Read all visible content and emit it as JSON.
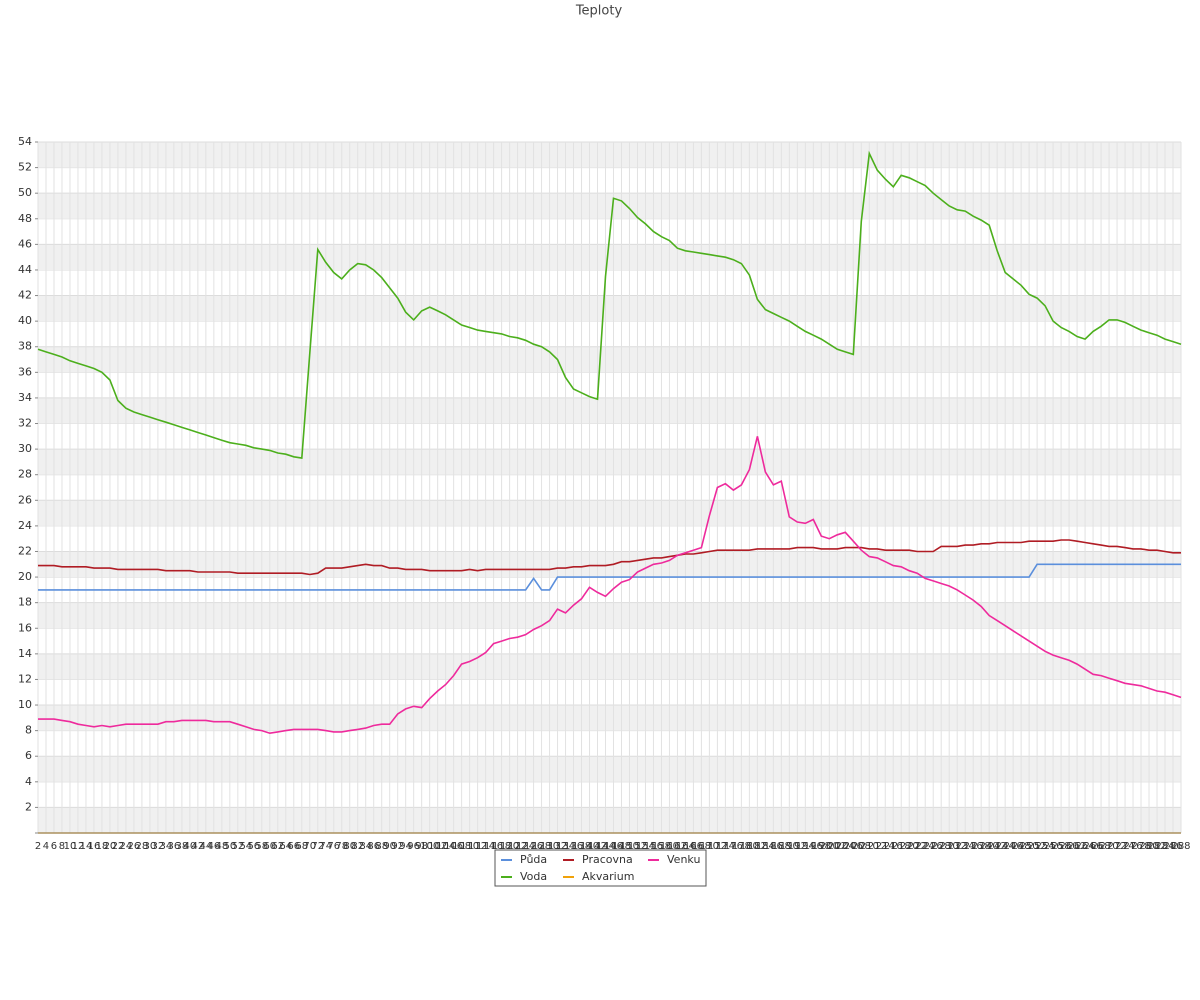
{
  "chart_data": {
    "type": "line",
    "title": "Teploty",
    "x": [
      2,
      4,
      6,
      8,
      10,
      12,
      14,
      16,
      18,
      20,
      22,
      24,
      26,
      28,
      30,
      32,
      34,
      36,
      38,
      40,
      42,
      44,
      46,
      48,
      50,
      52,
      54,
      56,
      58,
      60,
      62,
      64,
      66,
      68,
      70,
      72,
      74,
      76,
      78,
      80,
      82,
      84,
      86,
      88,
      90,
      92,
      94,
      96,
      98,
      100,
      102,
      104,
      106,
      108,
      110,
      112,
      114,
      116,
      118,
      120,
      122,
      124,
      126,
      128,
      130,
      132,
      134,
      136,
      138,
      140,
      142,
      144,
      146,
      148,
      150,
      152,
      154,
      156,
      158,
      160,
      162,
      164,
      166,
      168,
      170,
      172,
      174,
      176,
      178,
      180,
      182,
      184,
      186,
      188,
      190,
      192,
      194,
      196,
      198,
      200,
      202,
      204,
      206,
      208,
      210,
      212,
      214,
      216,
      218,
      220,
      222,
      224,
      226,
      228,
      230,
      232,
      234,
      236,
      238,
      240,
      242,
      244,
      246,
      248,
      250,
      252,
      254,
      256,
      258,
      260,
      262,
      264,
      266,
      268,
      270,
      272,
      274,
      276,
      278,
      280,
      282,
      284,
      286,
      288
    ],
    "ylim": [
      0,
      54
    ],
    "yticks": [
      2,
      4,
      6,
      8,
      10,
      12,
      14,
      16,
      18,
      20,
      22,
      24,
      26,
      28,
      30,
      32,
      34,
      36,
      38,
      40,
      42,
      44,
      46,
      48,
      50,
      52,
      54
    ],
    "grid": true,
    "legend": "bottom",
    "series": [
      {
        "name": "Půda",
        "color": "#5b8fdc",
        "values": [
          19,
          19,
          19,
          19,
          19,
          19,
          19,
          19,
          19,
          19,
          19,
          19,
          19,
          19,
          19,
          19,
          19,
          19,
          19,
          19,
          19,
          19,
          19,
          19,
          19,
          19,
          19,
          19,
          19,
          19,
          19,
          19,
          19,
          19,
          19,
          19,
          19,
          19,
          19,
          19,
          19,
          19,
          19,
          19,
          19,
          19,
          19,
          19,
          19,
          19,
          19,
          19,
          19,
          19,
          19,
          19,
          19,
          19,
          19,
          19,
          19,
          19,
          19.9,
          19,
          19,
          20,
          20,
          20,
          20,
          20,
          20,
          20,
          20,
          20,
          20,
          20,
          20,
          20,
          20,
          20,
          20,
          20,
          20,
          20,
          20,
          20,
          20,
          20,
          20,
          20,
          20,
          20,
          20,
          20,
          20,
          20,
          20,
          20,
          20,
          20,
          20,
          20,
          20,
          20,
          20,
          20,
          20,
          20,
          20,
          20,
          20,
          20,
          20,
          20,
          20,
          20,
          20,
          20,
          20,
          20,
          20,
          20,
          20,
          20,
          20,
          21,
          21,
          21,
          21,
          21,
          21,
          21,
          21,
          21,
          21,
          21,
          21,
          21,
          21,
          21,
          21,
          21,
          21,
          21
        ]
      },
      {
        "name": "Pracovna",
        "color": "#b01c24",
        "values": [
          20.9,
          20.9,
          20.9,
          20.8,
          20.8,
          20.8,
          20.8,
          20.7,
          20.7,
          20.7,
          20.6,
          20.6,
          20.6,
          20.6,
          20.6,
          20.6,
          20.5,
          20.5,
          20.5,
          20.5,
          20.4,
          20.4,
          20.4,
          20.4,
          20.4,
          20.3,
          20.3,
          20.3,
          20.3,
          20.3,
          20.3,
          20.3,
          20.3,
          20.3,
          20.2,
          20.3,
          20.7,
          20.7,
          20.7,
          20.8,
          20.9,
          21.0,
          20.9,
          20.9,
          20.7,
          20.7,
          20.6,
          20.6,
          20.6,
          20.5,
          20.5,
          20.5,
          20.5,
          20.5,
          20.6,
          20.5,
          20.6,
          20.6,
          20.6,
          20.6,
          20.6,
          20.6,
          20.6,
          20.6,
          20.6,
          20.7,
          20.7,
          20.8,
          20.8,
          20.9,
          20.9,
          20.9,
          21.0,
          21.2,
          21.2,
          21.3,
          21.4,
          21.5,
          21.5,
          21.6,
          21.7,
          21.8,
          21.8,
          21.9,
          22.0,
          22.1,
          22.1,
          22.1,
          22.1,
          22.1,
          22.2,
          22.2,
          22.2,
          22.2,
          22.2,
          22.3,
          22.3,
          22.3,
          22.2,
          22.2,
          22.2,
          22.3,
          22.3,
          22.3,
          22.2,
          22.2,
          22.1,
          22.1,
          22.1,
          22.1,
          22.0,
          22.0,
          22.0,
          22.4,
          22.4,
          22.4,
          22.5,
          22.5,
          22.6,
          22.6,
          22.7,
          22.7,
          22.7,
          22.7,
          22.8,
          22.8,
          22.8,
          22.8,
          22.9,
          22.9,
          22.8,
          22.7,
          22.6,
          22.5,
          22.4,
          22.4,
          22.3,
          22.2,
          22.2,
          22.1,
          22.1,
          22.0,
          21.9,
          21.9
        ]
      },
      {
        "name": "Venku",
        "color": "#ee2a9c",
        "values": [
          8.9,
          8.9,
          8.9,
          8.8,
          8.7,
          8.5,
          8.4,
          8.3,
          8.4,
          8.3,
          8.4,
          8.5,
          8.5,
          8.5,
          8.5,
          8.5,
          8.7,
          8.7,
          8.8,
          8.8,
          8.8,
          8.8,
          8.7,
          8.7,
          8.7,
          8.5,
          8.3,
          8.1,
          8.0,
          7.8,
          7.9,
          8.0,
          8.1,
          8.1,
          8.1,
          8.1,
          8.0,
          7.9,
          7.9,
          8.0,
          8.1,
          8.2,
          8.4,
          8.5,
          8.5,
          9.3,
          9.7,
          9.9,
          9.8,
          10.5,
          11.1,
          11.6,
          12.3,
          13.2,
          13.4,
          13.7,
          14.1,
          14.8,
          15.0,
          15.2,
          15.3,
          15.5,
          15.9,
          16.2,
          16.6,
          17.5,
          17.2,
          17.8,
          18.3,
          19.2,
          18.8,
          18.5,
          19.1,
          19.6,
          19.8,
          20.4,
          20.7,
          21.0,
          21.1,
          21.3,
          21.7,
          21.9,
          22.1,
          22.3,
          24.8,
          27.0,
          27.3,
          26.8,
          27.2,
          28.4,
          31.0,
          28.2,
          27.2,
          27.5,
          24.7,
          24.3,
          24.2,
          24.5,
          23.2,
          23.0,
          23.3,
          23.5,
          22.8,
          22.1,
          21.6,
          21.5,
          21.2,
          20.9,
          20.8,
          20.5,
          20.3,
          19.9,
          19.7,
          19.5,
          19.3,
          19.0,
          18.6,
          18.2,
          17.7,
          17.0,
          16.6,
          16.2,
          15.8,
          15.4,
          15.0,
          14.6,
          14.2,
          13.9,
          13.7,
          13.5,
          13.2,
          12.8,
          12.4,
          12.3,
          12.1,
          11.9,
          11.7,
          11.6,
          11.5,
          11.3,
          11.1,
          11.0,
          10.8,
          10.6
        ]
      },
      {
        "name": "Voda",
        "color": "#4caf1c",
        "values": [
          37.8,
          37.6,
          37.4,
          37.2,
          36.9,
          36.7,
          36.5,
          36.3,
          36.0,
          35.4,
          33.8,
          33.2,
          32.9,
          32.7,
          32.5,
          32.3,
          32.1,
          31.9,
          31.7,
          31.5,
          31.3,
          31.1,
          30.9,
          30.7,
          30.5,
          30.4,
          30.3,
          30.1,
          30.0,
          29.9,
          29.7,
          29.6,
          29.4,
          29.3,
          37.5,
          45.6,
          44.6,
          43.8,
          43.3,
          44.0,
          44.5,
          44.4,
          44.0,
          43.4,
          42.6,
          41.8,
          40.7,
          40.1,
          40.8,
          41.1,
          40.8,
          40.5,
          40.1,
          39.7,
          39.5,
          39.3,
          39.2,
          39.1,
          39.0,
          38.8,
          38.7,
          38.5,
          38.2,
          38.0,
          37.6,
          37.0,
          35.6,
          34.7,
          34.4,
          34.1,
          33.9,
          43.5,
          49.6,
          49.4,
          48.8,
          48.1,
          47.6,
          47.0,
          46.6,
          46.3,
          45.7,
          45.5,
          45.4,
          45.3,
          45.2,
          45.1,
          45.0,
          44.8,
          44.5,
          43.6,
          41.7,
          40.9,
          40.6,
          40.3,
          40.0,
          39.6,
          39.2,
          38.9,
          38.6,
          38.2,
          37.8,
          37.6,
          37.4,
          47.8,
          53.1,
          51.8,
          51.1,
          50.5,
          51.4,
          51.2,
          50.9,
          50.6,
          50.0,
          49.5,
          49.0,
          48.7,
          48.6,
          48.2,
          47.9,
          47.5,
          45.5,
          43.8,
          43.3,
          42.8,
          42.1,
          41.8,
          41.2,
          40.0,
          39.5,
          39.2,
          38.8,
          38.6,
          39.2,
          39.6,
          40.1,
          40.1,
          39.9,
          39.6,
          39.3,
          39.1,
          38.9,
          38.6,
          38.4,
          38.2
        ]
      },
      {
        "name": "Akvarium",
        "color": "#f0a20a",
        "values": [
          0,
          0,
          0,
          0,
          0,
          0,
          0,
          0,
          0,
          0,
          0,
          0,
          0,
          0,
          0,
          0,
          0,
          0,
          0,
          0,
          0,
          0,
          0,
          0,
          0,
          0,
          0,
          0,
          0,
          0,
          0,
          0,
          0,
          0,
          0,
          0,
          0,
          0,
          0,
          0,
          0,
          0,
          0,
          0,
          0,
          0,
          0,
          0,
          0,
          0,
          0,
          0,
          0,
          0,
          0,
          0,
          0,
          0,
          0,
          0,
          0,
          0,
          0,
          0,
          0,
          0,
          0,
          0,
          0,
          0,
          0,
          0,
          0,
          0,
          0,
          0,
          0,
          0,
          0,
          0,
          0,
          0,
          0,
          0,
          0,
          0,
          0,
          0,
          0,
          0,
          0,
          0,
          0,
          0,
          0,
          0,
          0,
          0,
          0,
          0,
          0,
          0,
          0,
          0,
          0,
          0,
          0,
          0,
          0,
          0,
          0,
          0,
          0,
          0,
          0,
          0,
          0,
          0,
          0,
          0,
          0,
          0,
          0,
          0,
          0,
          0,
          0,
          0,
          0,
          0,
          0,
          0,
          0,
          0,
          0,
          0,
          0,
          0,
          0,
          0,
          0,
          0,
          0,
          0
        ]
      }
    ]
  }
}
